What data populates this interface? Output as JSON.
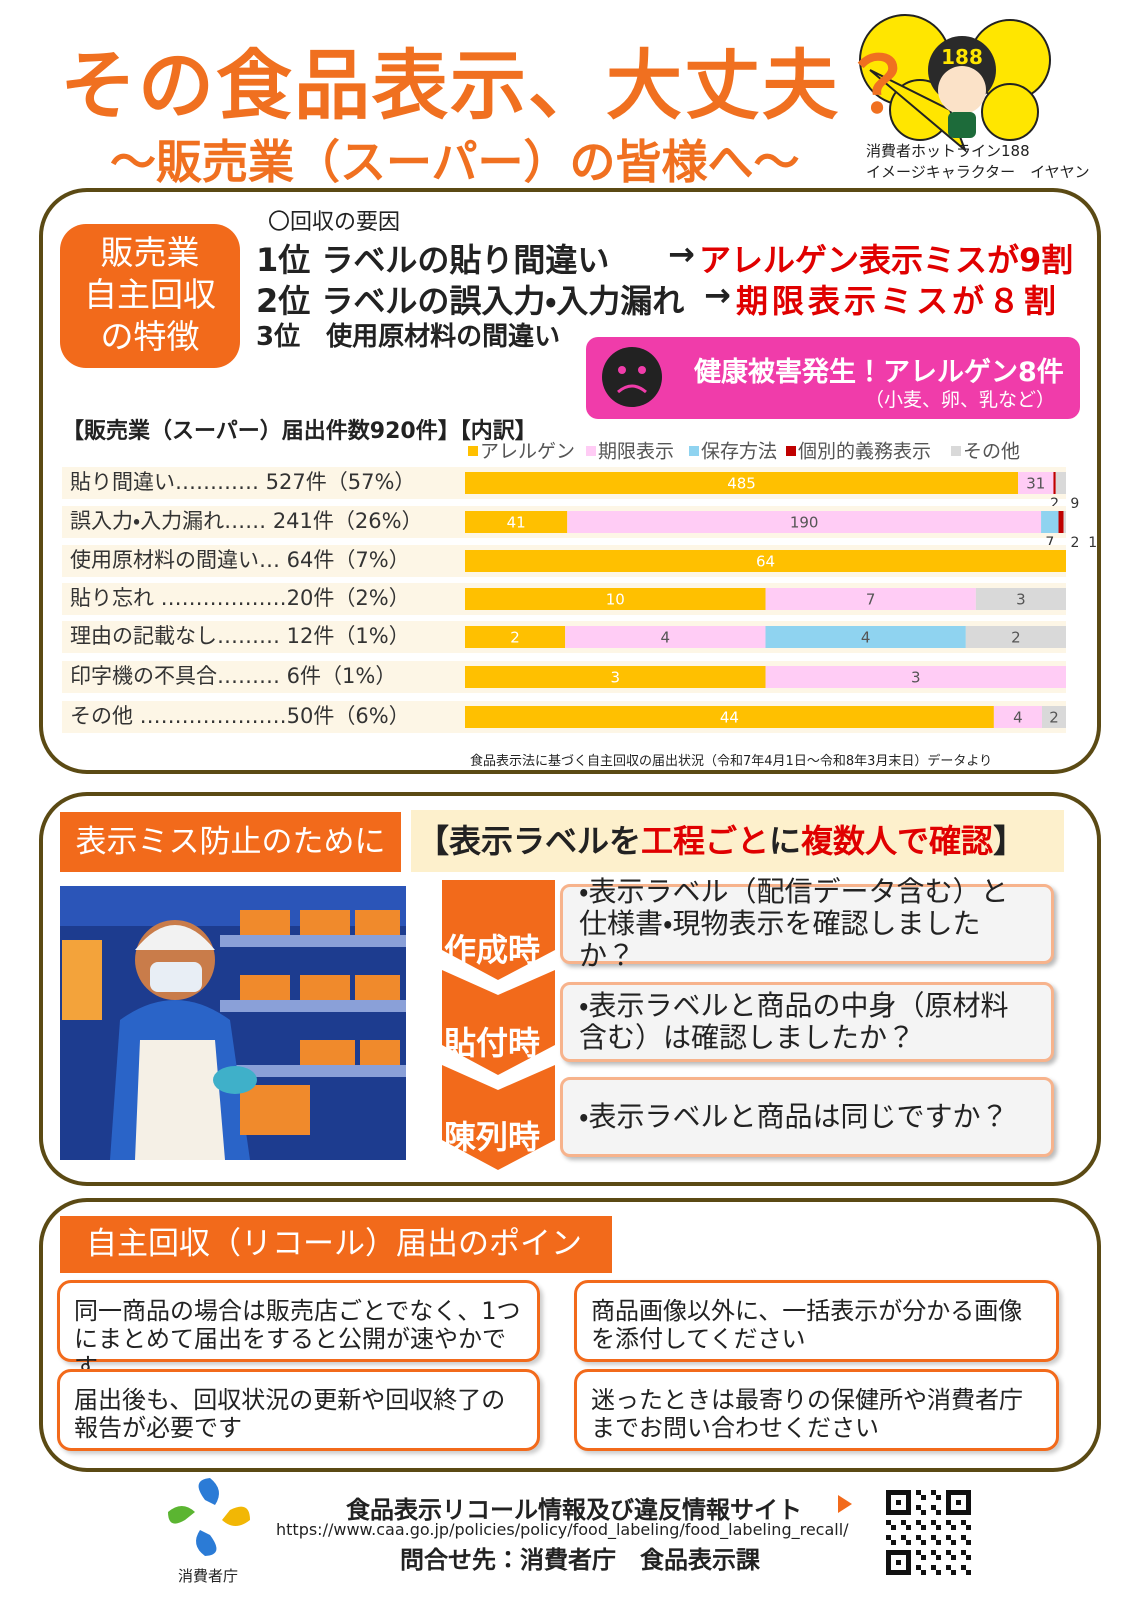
{
  "header": {
    "title": "その食品表示、大丈夫？",
    "subtitle": "～販売業（スーパー）の皆様へ～",
    "mascot_number": "188",
    "character_caption": [
      "消費者ホットライン188",
      "イメージキャラクター　イヤヤン"
    ]
  },
  "features": {
    "badge": [
      "販売業",
      "自主回収",
      "の特徴"
    ],
    "causes_heading": "〇回収の要因",
    "causes": [
      {
        "text": "1位 ラベルの貼り間違い",
        "arrow": "→",
        "result": "アレルゲン表示ミスが9割"
      },
      {
        "text": "2位 ラベルの誤入力・入力漏れ",
        "arrow": "→",
        "result": "期限表示ミスが８割"
      },
      {
        "text": "3位　使用原材料の間違い"
      }
    ],
    "alert": {
      "text": "健康被害発生！アレルゲン8件",
      "note": "（小麦、卵、乳など）"
    }
  },
  "chart_data": {
    "type": "bar",
    "orientation": "horizontal",
    "stacked": true,
    "title": "【販売業（スーパー）届出件数920件】【内訳】",
    "categories": [
      "貼り間違い………… 527件（57%）",
      "誤入力・入力漏れ…… 241件（26%）",
      "使用原材料の間違い… 64件（7%）",
      "貼り忘れ ………………20件（2%）",
      "理由の記載なし……… 12件（1%）",
      "印字機の不具合……… 6件（1%）",
      "その他 …………………50件（6%）"
    ],
    "series": [
      {
        "name": "アレルゲン",
        "color": "#ffc000",
        "values": [
          485,
          41,
          64,
          10,
          2,
          3,
          44
        ]
      },
      {
        "name": "期限表示",
        "color": "#ffccf5",
        "values": [
          31,
          190,
          null,
          7,
          4,
          3,
          4
        ]
      },
      {
        "name": "保存方法",
        "color": "#8fd3f0",
        "values": [
          null,
          7,
          null,
          null,
          4,
          null,
          null
        ]
      },
      {
        "name": "個別的義務表示",
        "color": "#c00000",
        "values": [
          2,
          2,
          null,
          null,
          null,
          null,
          null
        ]
      },
      {
        "name": "その他",
        "color": "#d9d9d9",
        "values": [
          9,
          1,
          null,
          3,
          2,
          null,
          2
        ]
      }
    ],
    "source": "食品表示法に基づく自主回収の届出状況（令和7年4月1日～令和8年3月末日）データより"
  },
  "prevention": {
    "badge": "表示ミス防止のために",
    "heading": [
      "【表示ラベルを",
      "工程ごと",
      "に",
      "複数人で確認",
      "】"
    ],
    "steps": [
      {
        "label": "作成時",
        "text": "・表示ラベル（配信データ含む）と仕様書・現物表示を確認しましたか？"
      },
      {
        "label": "貼付時",
        "text": "・表示ラベルと商品の中身（原材料含む）は確認しましたか？"
      },
      {
        "label": "陳列時",
        "text": "・表示ラベルと商品は同じですか？"
      }
    ]
  },
  "recall_points": {
    "heading": "自主回収（リコール）届出のポイント",
    "points": [
      "同一商品の場合は販売店ごとでなく、1つにまとめて届出をすると公開が速やかです",
      "商品画像以外に、一括表示が分かる画像を添付してください",
      "届出後も、回収状況の更新や回収終了の報告が必要です",
      "迷ったときは最寄りの保健所や消費者庁までお問い合わせください"
    ]
  },
  "footer": {
    "site_title": "食品表示リコール情報及び違反情報サイト",
    "url": "https://www.caa.go.jp/policies/policy/food_labeling/food_labeling_recall/",
    "contact": "問合せ先：消費者庁　食品表示課",
    "logo_caption": "消費者庁"
  }
}
